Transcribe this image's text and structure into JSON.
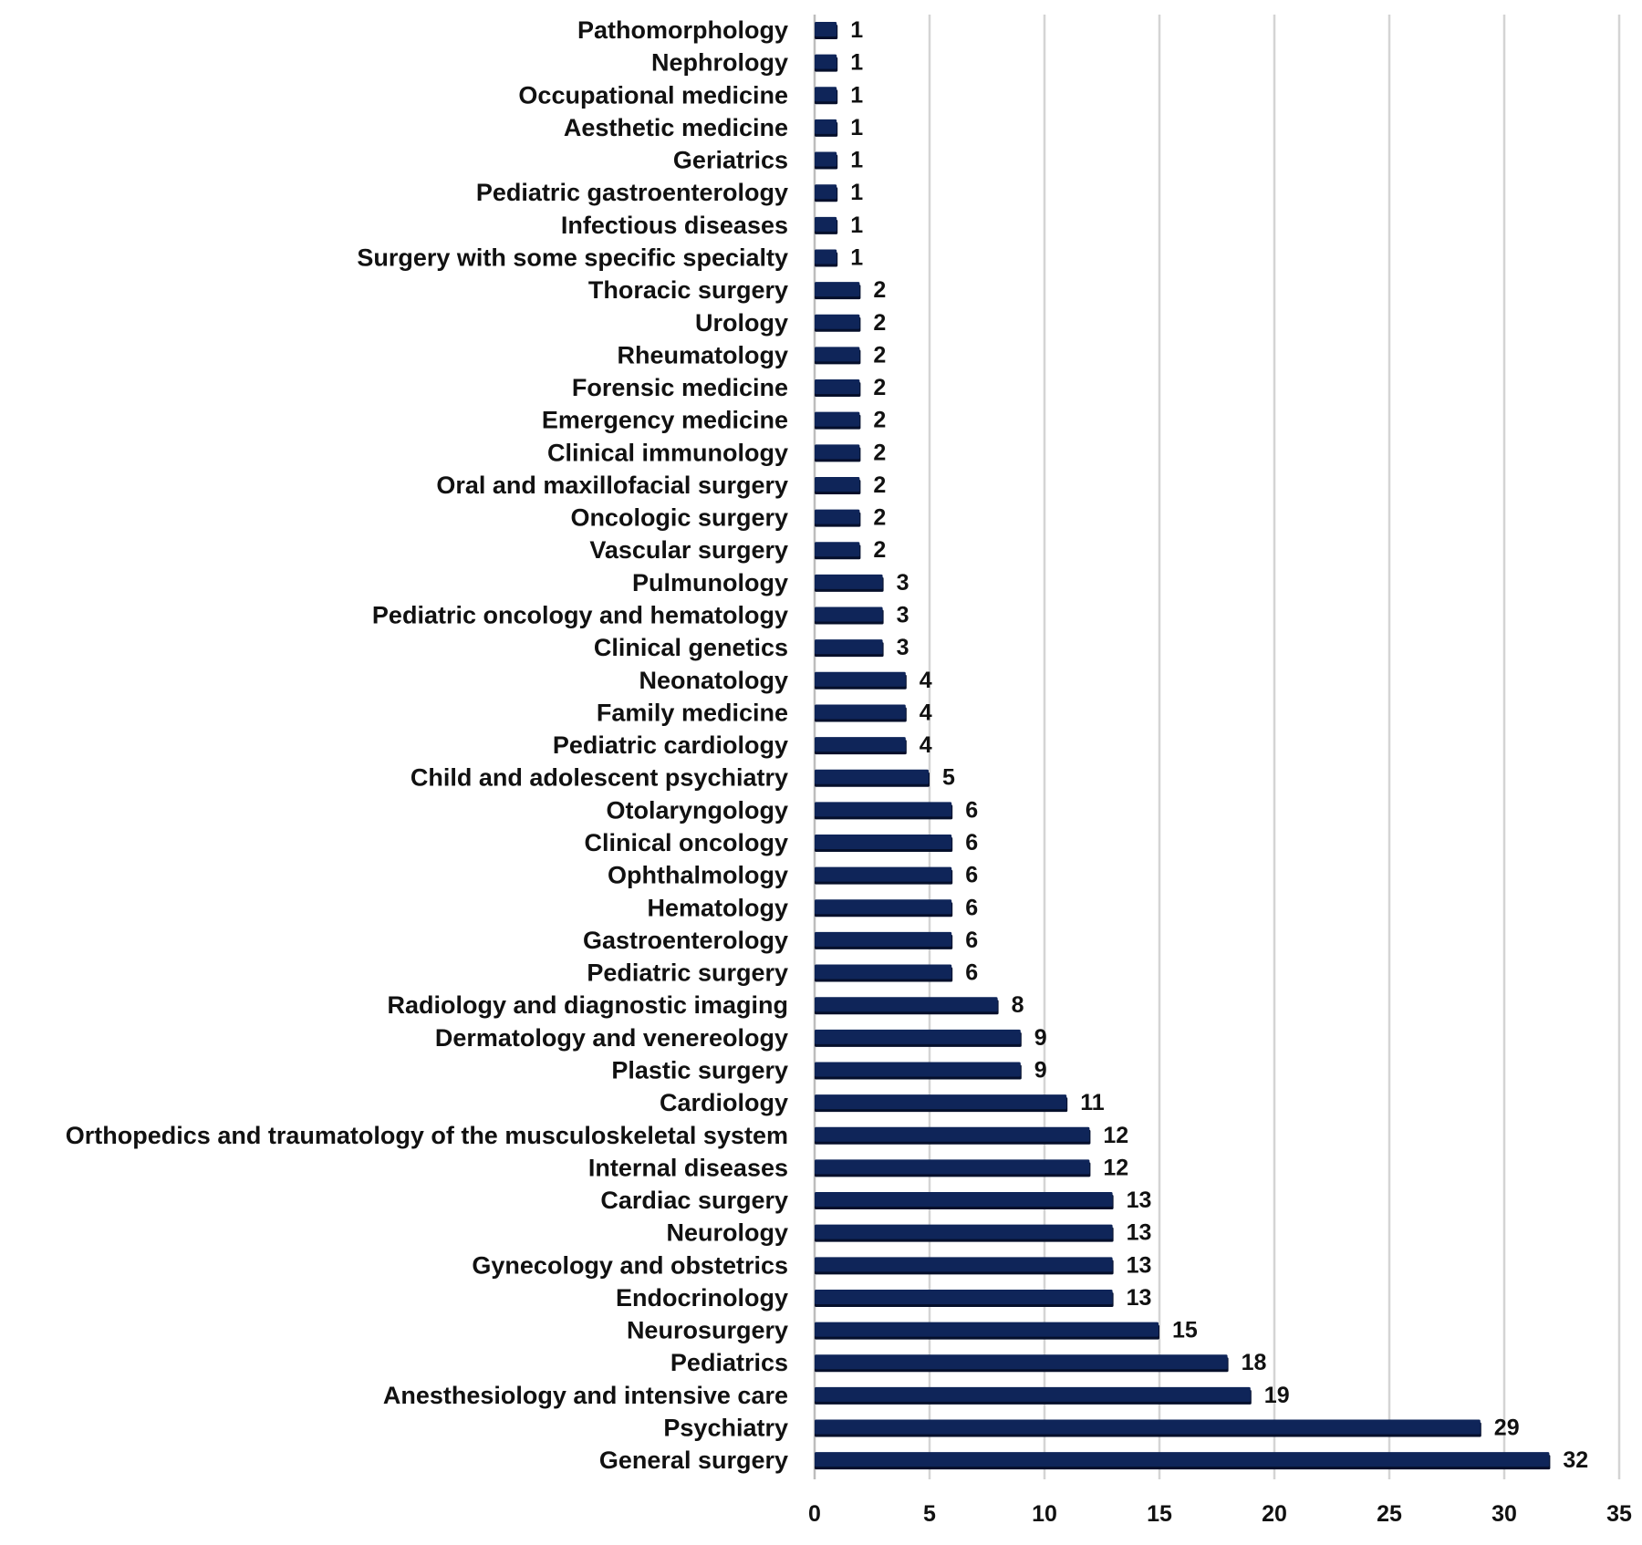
{
  "chart_data": {
    "type": "bar",
    "orientation": "horizontal",
    "title": "",
    "xlabel": "",
    "ylabel": "",
    "xlim": [
      0,
      35
    ],
    "x_ticks": [
      0,
      5,
      10,
      15,
      20,
      25,
      30,
      35
    ],
    "grid": "vertical",
    "legend": "none",
    "bar_color": "#0f2559",
    "categories": [
      "Pathomorphology",
      "Nephrology",
      "Occupational medicine",
      "Aesthetic medicine",
      "Geriatrics",
      "Pediatric gastroenterology",
      "Infectious diseases",
      "Surgery with some specific specialty",
      "Thoracic surgery",
      "Urology",
      "Rheumatology",
      "Forensic medicine",
      "Emergency medicine",
      "Clinical immunology",
      "Oral and maxillofacial surgery",
      "Oncologic surgery",
      "Vascular surgery",
      "Pulmunology",
      "Pediatric oncology and hematology",
      "Clinical genetics",
      "Neonatology",
      "Family medicine",
      "Pediatric cardiology",
      "Child and adolescent psychiatry",
      "Otolaryngology",
      "Clinical oncology",
      "Ophthalmology",
      "Hematology",
      "Gastroenterology",
      "Pediatric surgery",
      "Radiology and diagnostic imaging",
      "Dermatology and venereology",
      "Plastic surgery",
      "Cardiology",
      "Orthopedics and traumatology of the musculoskeletal system",
      "Internal diseases",
      "Cardiac surgery",
      "Neurology",
      "Gynecology and obstetrics",
      "Endocrinology",
      "Neurosurgery",
      "Pediatrics",
      "Anesthesiology and intensive care",
      "Psychiatry",
      "General surgery"
    ],
    "values": [
      1,
      1,
      1,
      1,
      1,
      1,
      1,
      1,
      2,
      2,
      2,
      2,
      2,
      2,
      2,
      2,
      2,
      3,
      3,
      3,
      4,
      4,
      4,
      5,
      6,
      6,
      6,
      6,
      6,
      6,
      8,
      9,
      9,
      11,
      12,
      12,
      13,
      13,
      13,
      13,
      15,
      18,
      19,
      29,
      32
    ]
  }
}
